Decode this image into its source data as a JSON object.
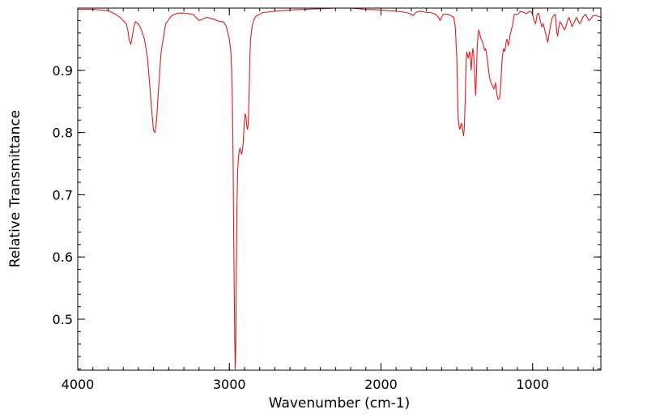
{
  "chart_data": {
    "type": "line",
    "title": "",
    "xlabel": "Wavenumber (cm-1)",
    "ylabel": "Relative Transmittance",
    "xlim": [
      4000,
      550
    ],
    "ylim": [
      0.418,
      1.0
    ],
    "x_reversed": true,
    "grid": false,
    "legend": "none",
    "line_color": "#e41a1c",
    "x_ticks": [
      4000,
      3000,
      2000,
      1000
    ],
    "x_tick_labels": [
      "4000",
      "3000",
      "2000",
      "1000"
    ],
    "y_ticks": [
      0.5,
      0.6,
      0.7,
      0.8,
      0.9
    ],
    "y_tick_labels": [
      "0.5",
      "0.6",
      "0.7",
      "0.8",
      "0.9"
    ],
    "series": [
      {
        "x": [
          4000,
          3900,
          3800,
          3750,
          3720,
          3700,
          3680,
          3670,
          3660,
          3650,
          3640,
          3630,
          3620,
          3600,
          3580,
          3560,
          3540,
          3530,
          3520,
          3510,
          3500,
          3490,
          3480,
          3470,
          3450,
          3420,
          3380,
          3340,
          3300,
          3240,
          3220,
          3200,
          3150,
          3100,
          3080,
          3060,
          3040,
          3030,
          3020,
          3010,
          3000,
          2990,
          2985,
          2980,
          2975,
          2972,
          2968,
          2965,
          2962,
          2958,
          2955,
          2950,
          2945,
          2940,
          2935,
          2930,
          2925,
          2920,
          2915,
          2910,
          2905,
          2900,
          2895,
          2890,
          2885,
          2880,
          2875,
          2872,
          2868,
          2865,
          2860,
          2850,
          2840,
          2830,
          2820,
          2800,
          2780,
          2760,
          2740,
          2700,
          2650,
          2600,
          2500,
          2400,
          2300,
          2200,
          2100,
          2000,
          1950,
          1900,
          1860,
          1820,
          1800,
          1790,
          1780,
          1770,
          1760,
          1740,
          1720,
          1700,
          1680,
          1660,
          1640,
          1620,
          1610,
          1600,
          1590,
          1580,
          1560,
          1540,
          1520,
          1510,
          1500,
          1495,
          1490,
          1485,
          1480,
          1475,
          1470,
          1465,
          1460,
          1455,
          1450,
          1445,
          1440,
          1435,
          1430,
          1425,
          1420,
          1415,
          1410,
          1405,
          1400,
          1395,
          1390,
          1385,
          1380,
          1375,
          1370,
          1365,
          1360,
          1355,
          1350,
          1345,
          1340,
          1335,
          1330,
          1325,
          1320,
          1315,
          1310,
          1305,
          1300,
          1295,
          1290,
          1285,
          1280,
          1275,
          1270,
          1265,
          1260,
          1255,
          1250,
          1245,
          1240,
          1235,
          1230,
          1225,
          1220,
          1215,
          1210,
          1205,
          1200,
          1195,
          1190,
          1185,
          1180,
          1175,
          1170,
          1165,
          1160,
          1155,
          1150,
          1145,
          1140,
          1135,
          1130,
          1125,
          1120,
          1110,
          1100,
          1090,
          1080,
          1070,
          1060,
          1050,
          1040,
          1030,
          1020,
          1010,
          1000,
          990,
          980,
          970,
          960,
          950,
          940,
          930,
          920,
          910,
          900,
          890,
          880,
          875,
          870,
          860,
          850,
          845,
          840,
          835,
          830,
          820,
          810,
          800,
          790,
          780,
          770,
          760,
          750,
          740,
          730,
          720,
          710,
          700,
          690,
          680,
          670,
          660,
          650,
          640,
          630,
          620,
          610,
          600,
          580,
          560,
          550
        ],
        "y": [
          0.998,
          0.998,
          0.996,
          0.99,
          0.985,
          0.98,
          0.975,
          0.965,
          0.948,
          0.942,
          0.955,
          0.97,
          0.978,
          0.975,
          0.965,
          0.95,
          0.92,
          0.89,
          0.86,
          0.83,
          0.803,
          0.8,
          0.82,
          0.86,
          0.93,
          0.975,
          0.988,
          0.992,
          0.992,
          0.99,
          0.985,
          0.98,
          0.985,
          0.982,
          0.98,
          0.978,
          0.978,
          0.975,
          0.97,
          0.96,
          0.95,
          0.93,
          0.9,
          0.85,
          0.75,
          0.65,
          0.55,
          0.48,
          0.42,
          0.45,
          0.55,
          0.68,
          0.74,
          0.76,
          0.77,
          0.775,
          0.77,
          0.765,
          0.77,
          0.78,
          0.8,
          0.82,
          0.83,
          0.825,
          0.81,
          0.805,
          0.815,
          0.84,
          0.88,
          0.92,
          0.95,
          0.97,
          0.98,
          0.985,
          0.988,
          0.99,
          0.993,
          0.993,
          0.994,
          0.995,
          0.996,
          0.997,
          0.998,
          0.999,
          1.0,
          1.0,
          0.998,
          0.997,
          0.996,
          0.995,
          0.994,
          0.992,
          0.99,
          0.988,
          0.99,
          0.993,
          0.994,
          0.995,
          0.994,
          0.993,
          0.993,
          0.992,
          0.99,
          0.985,
          0.98,
          0.985,
          0.99,
          0.99,
          0.99,
          0.988,
          0.985,
          0.97,
          0.92,
          0.86,
          0.82,
          0.81,
          0.805,
          0.81,
          0.815,
          0.81,
          0.8,
          0.795,
          0.81,
          0.85,
          0.9,
          0.93,
          0.925,
          0.92,
          0.925,
          0.93,
          0.92,
          0.9,
          0.92,
          0.935,
          0.93,
          0.91,
          0.88,
          0.86,
          0.9,
          0.94,
          0.955,
          0.965,
          0.96,
          0.955,
          0.95,
          0.948,
          0.945,
          0.94,
          0.935,
          0.932,
          0.935,
          0.928,
          0.92,
          0.91,
          0.9,
          0.89,
          0.885,
          0.88,
          0.878,
          0.875,
          0.872,
          0.87,
          0.875,
          0.88,
          0.87,
          0.86,
          0.855,
          0.853,
          0.855,
          0.86,
          0.88,
          0.9,
          0.92,
          0.93,
          0.935,
          0.93,
          0.935,
          0.945,
          0.95,
          0.945,
          0.94,
          0.945,
          0.955,
          0.96,
          0.965,
          0.97,
          0.975,
          0.985,
          0.99,
          0.99,
          0.99,
          0.992,
          0.995,
          0.994,
          0.993,
          0.992,
          0.991,
          0.993,
          0.995,
          0.994,
          0.99,
          0.98,
          0.975,
          0.99,
          0.992,
          0.98,
          0.97,
          0.975,
          0.965,
          0.955,
          0.945,
          0.96,
          0.975,
          0.98,
          0.985,
          0.988,
          0.99,
          0.975,
          0.96,
          0.955,
          0.965,
          0.978,
          0.975,
          0.97,
          0.965,
          0.97,
          0.98,
          0.985,
          0.978,
          0.97,
          0.975,
          0.98,
          0.985,
          0.98,
          0.975,
          0.978,
          0.985,
          0.988,
          0.99,
          0.985,
          0.98,
          0.982,
          0.985,
          0.988,
          0.988,
          0.986,
          0.985
        ]
      }
    ]
  }
}
